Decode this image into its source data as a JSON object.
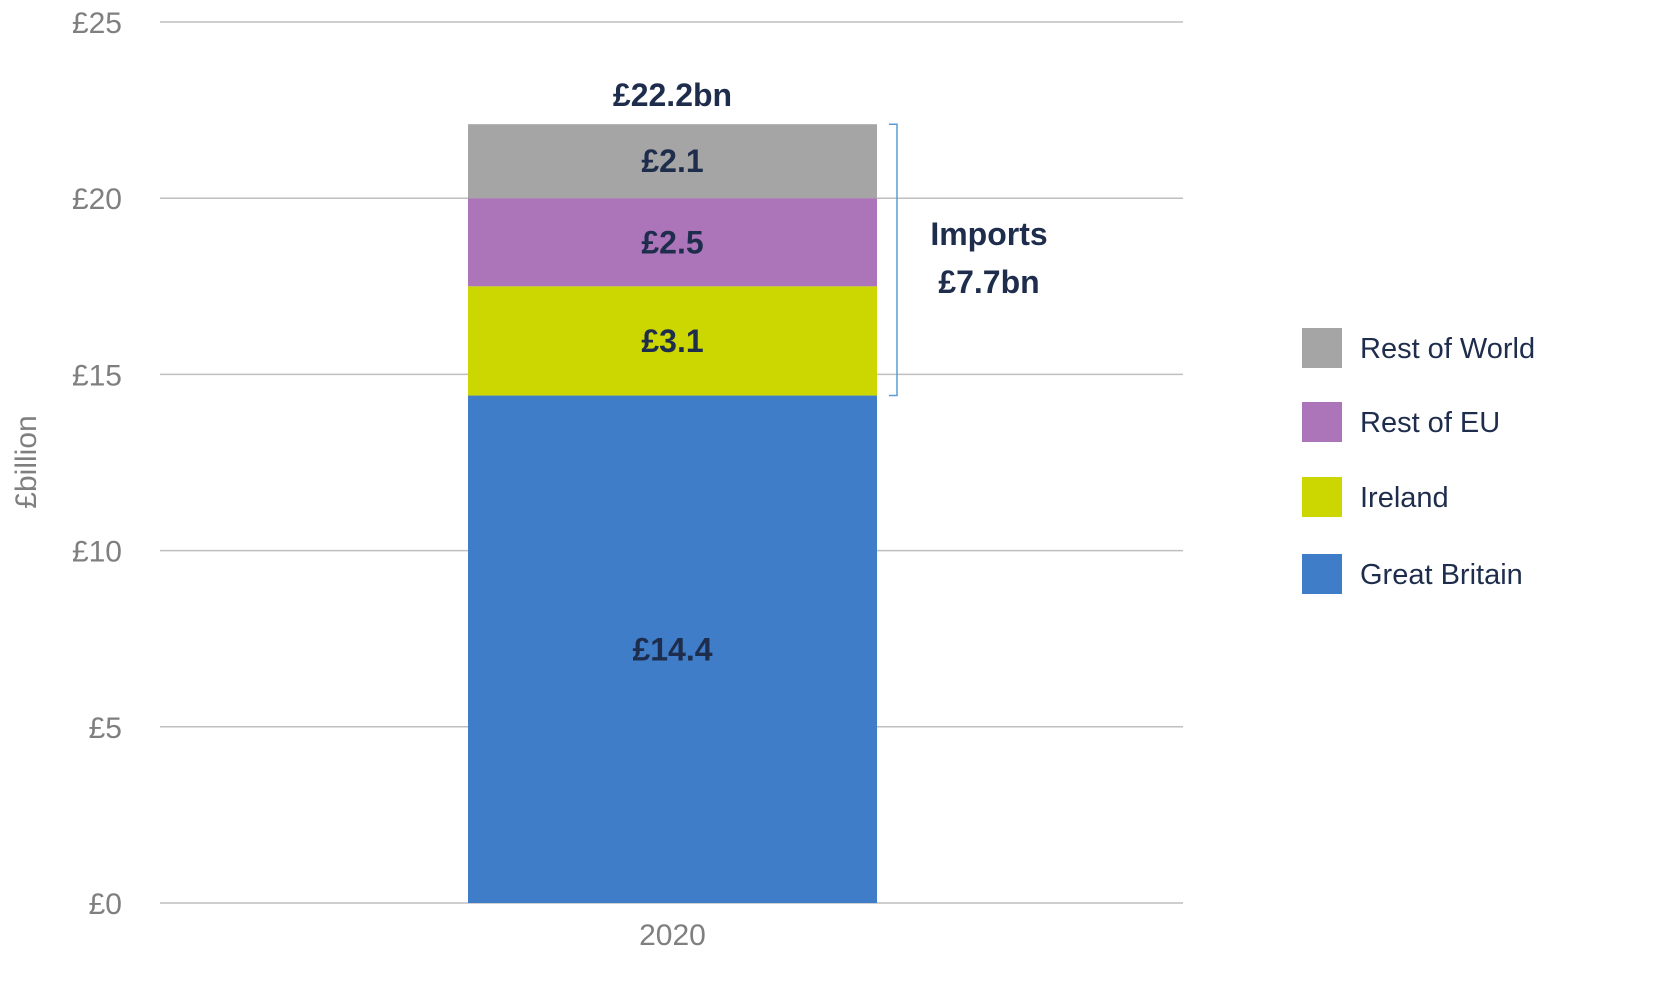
{
  "chart_data": {
    "type": "bar",
    "stacked": true,
    "categories": [
      "2020"
    ],
    "series": [
      {
        "name": "Great Britain",
        "values": [
          14.4
        ],
        "color": "#3f7dc8",
        "label": "£14.4"
      },
      {
        "name": "Ireland",
        "values": [
          3.1
        ],
        "color": "#ccd600",
        "label": "£3.1"
      },
      {
        "name": "Rest of EU",
        "values": [
          2.5
        ],
        "color": "#ad75b9",
        "label": "£2.5"
      },
      {
        "name": "Rest of World",
        "values": [
          2.1
        ],
        "color": "#a5a5a5",
        "label": "£2.1"
      }
    ],
    "total_label": "£22.2bn",
    "bracket_annotation": {
      "line1": "Imports",
      "line2": "£7.7bn",
      "from_value": 14.4,
      "to_value": 22.1
    },
    "xlabel": "",
    "ylabel": "£billion",
    "ylim": [
      0,
      25
    ],
    "yticks": [
      0,
      5,
      10,
      15,
      20,
      25
    ],
    "ytick_labels": [
      "£0",
      "£5",
      "£10",
      "£15",
      "£20",
      "£25"
    ],
    "grid": true,
    "legend_position": "right",
    "legend_order": [
      "Rest of World",
      "Rest of EU",
      "Ireland",
      "Great Britain"
    ]
  }
}
